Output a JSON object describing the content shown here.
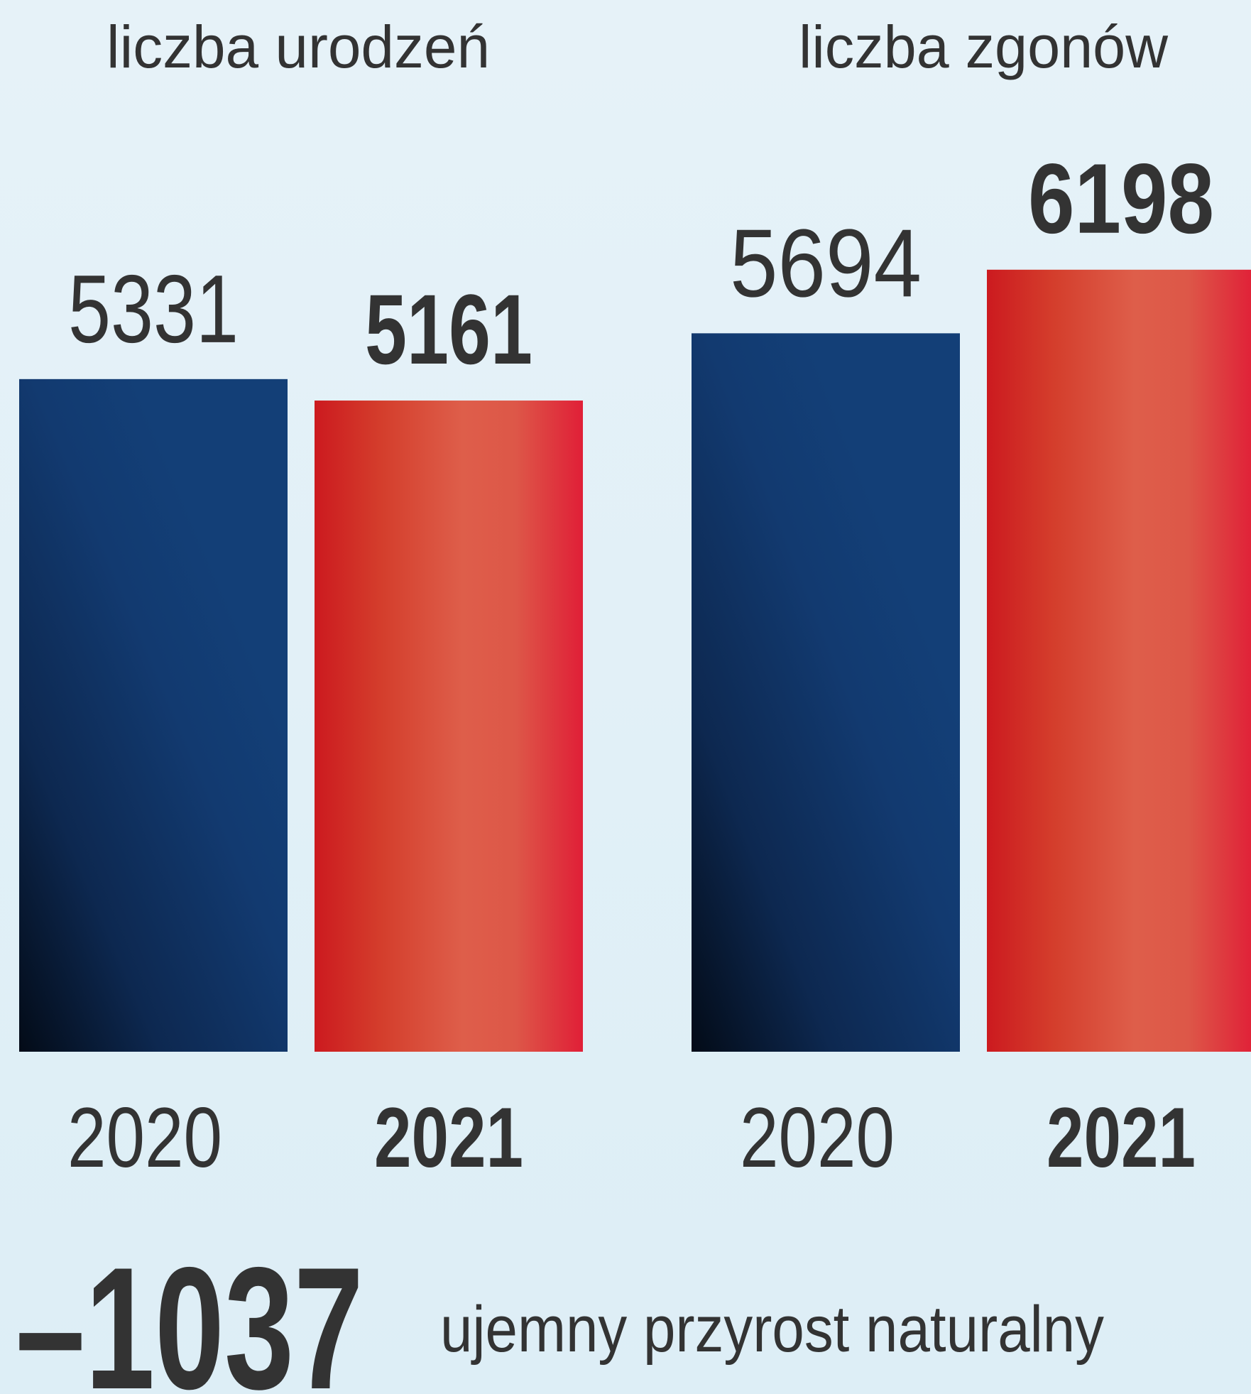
{
  "chart_data": {
    "type": "bar",
    "groups": [
      {
        "title": "liczba urodzeń",
        "categories": [
          "2020",
          "2021"
        ],
        "values": [
          5331,
          5161
        ],
        "value_labels": [
          "5331",
          "5161"
        ]
      },
      {
        "title": "liczba zgonów",
        "categories": [
          "2020",
          "2021"
        ],
        "values": [
          5694,
          6198
        ],
        "value_labels": [
          "5694",
          "6198"
        ]
      }
    ],
    "series_colors": {
      "2020": "#123a70",
      "2021": "#d9342b"
    },
    "ylim": [
      0,
      6200
    ],
    "grid": false,
    "legend": "none"
  },
  "summary": {
    "value": "–1037",
    "label": "ujemny przyrost naturalny"
  },
  "colors": {
    "text": "#333333",
    "bar_2020": "#123a70",
    "bar_2020_dark": "#07152b",
    "bar_2021": "#d9342b",
    "bar_2021_light": "#de5e4a",
    "bar_2021_edge": "#e0213a"
  }
}
